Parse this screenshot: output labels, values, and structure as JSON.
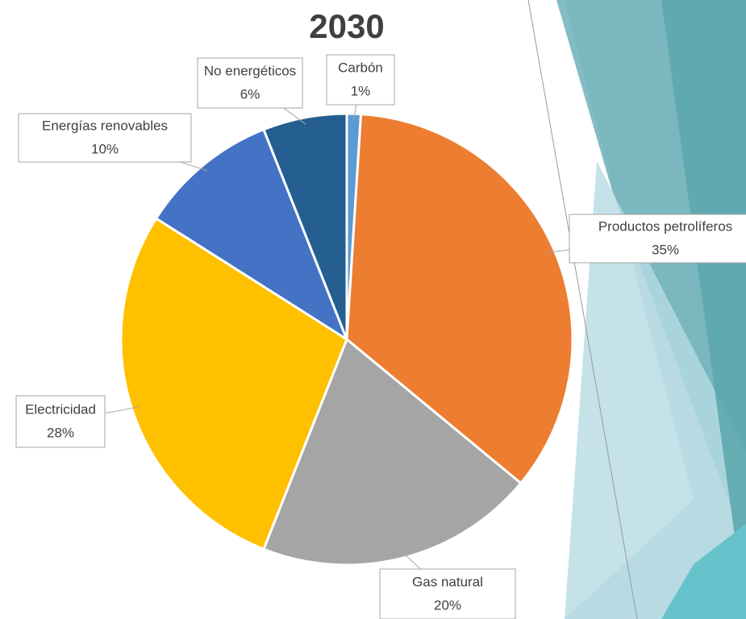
{
  "chart_data": {
    "type": "pie",
    "title": "2030",
    "categories": [
      "Carbón",
      "Productos petrolíferos",
      "Gas natural",
      "Electricidad",
      "Energías renovables",
      "No energéticos"
    ],
    "values": [
      1,
      35,
      20,
      28,
      10,
      6
    ],
    "value_labels": [
      "1%",
      "35%",
      "20%",
      "28%",
      "10%",
      "6%"
    ],
    "colors": [
      "#5b9bd5",
      "#ed7d31",
      "#a5a5a5",
      "#ffc000",
      "#4472c4",
      "#255e91"
    ]
  }
}
